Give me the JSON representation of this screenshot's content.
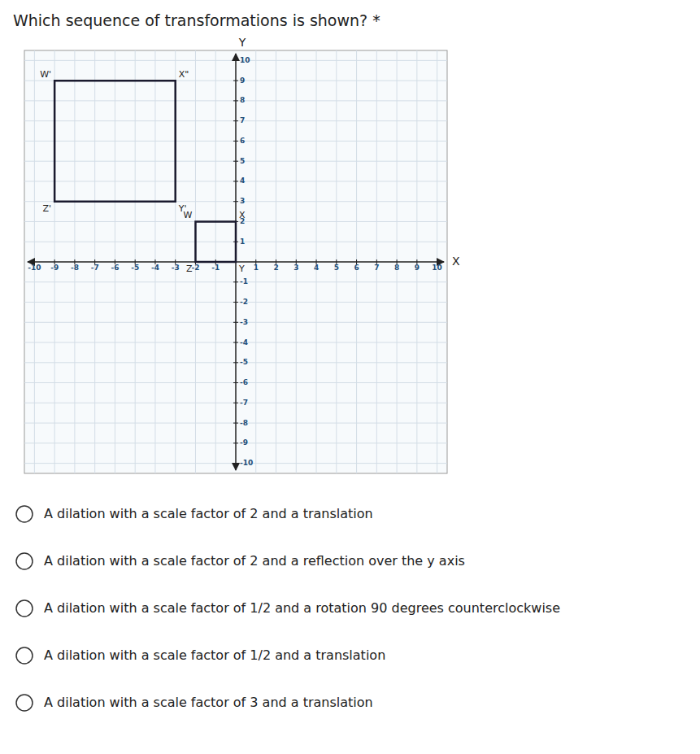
{
  "chart_data": {
    "type": "polygon",
    "title": "Which sequence of transformations is shown? *",
    "x_label": "X",
    "y_label": "Y",
    "xlim": [
      -10.5,
      10.5
    ],
    "ylim": [
      -10.5,
      10.5
    ],
    "xticks": [
      -10,
      -9,
      -8,
      -7,
      -6,
      -5,
      -4,
      -3,
      -2,
      -1,
      1,
      2,
      3,
      4,
      5,
      6,
      7,
      8,
      9,
      10
    ],
    "yticks": [
      -10,
      -9,
      -8,
      -7,
      -6,
      -5,
      -4,
      -3,
      -2,
      -1,
      1,
      2,
      3,
      4,
      5,
      6,
      7,
      8,
      9,
      10
    ],
    "grid": true,
    "series": [
      {
        "color": "#1a1a2e",
        "x": [
          -2,
          0,
          0,
          -2
        ],
        "values": [
          0,
          0,
          2,
          2
        ]
      },
      {
        "color": "#1a1a2e",
        "x": [
          -9,
          -3,
          -3,
          -9
        ],
        "values": [
          3,
          3,
          9,
          9
        ]
      }
    ],
    "annotations": [
      {
        "text": "W",
        "x": -2,
        "y": 2
      },
      {
        "text": "X",
        "x": 0,
        "y": 2
      },
      {
        "text": "Y",
        "x": 0,
        "y": 0
      },
      {
        "text": "Z",
        "x": -2,
        "y": 0
      },
      {
        "text": "W'",
        "x": -9,
        "y": 9
      },
      {
        "text": "X\"",
        "x": -3,
        "y": 9
      },
      {
        "text": "Y'",
        "x": -3,
        "y": 3
      },
      {
        "text": "Z'",
        "x": -9,
        "y": 3
      }
    ],
    "options": [
      "A dilation with a scale factor of 2 and a translation",
      "A dilation with a scale factor of 2 and a reflection over the y axis",
      "A dilation with a scale factor of 1/2 and a rotation 90 degrees counterclockwise",
      "A dilation with a scale factor of 1/2 and a translation",
      "A dilation with a scale factor of 3 and a translation"
    ]
  }
}
